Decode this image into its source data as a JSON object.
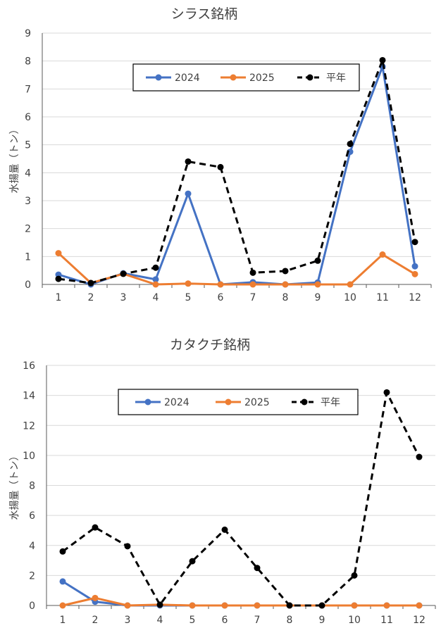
{
  "chart_data": [
    {
      "type": "line",
      "title": "シラス銘柄",
      "ylabel": "水揚量（トン）",
      "xlabel": "",
      "categories": [
        "1",
        "2",
        "3",
        "4",
        "5",
        "6",
        "7",
        "8",
        "9",
        "10",
        "11",
        "12"
      ],
      "ylim": [
        0,
        9
      ],
      "yticks": [
        0,
        1,
        2,
        3,
        4,
        5,
        6,
        7,
        8,
        9
      ],
      "grid": true,
      "legend": "top-center",
      "series": [
        {
          "name": "2024",
          "color": "#4472C4",
          "dash": false,
          "values": [
            0.35,
            0.0,
            0.4,
            0.18,
            3.25,
            0.0,
            0.08,
            0.0,
            0.07,
            4.75,
            7.8,
            0.65
          ]
        },
        {
          "name": "2025",
          "color": "#ED7D31",
          "dash": false,
          "values": [
            1.12,
            0.05,
            0.38,
            0.0,
            0.03,
            0.0,
            0.0,
            0.0,
            0.0,
            0.0,
            1.07,
            0.37
          ]
        },
        {
          "name": "平年",
          "color": "#000000",
          "dash": true,
          "values": [
            0.2,
            0.05,
            0.38,
            0.6,
            4.4,
            4.2,
            0.42,
            0.48,
            0.85,
            5.03,
            8.03,
            1.52
          ]
        }
      ]
    },
    {
      "type": "line",
      "title": "カタクチ銘柄",
      "ylabel": "水揚量（トン）",
      "xlabel": "",
      "categories": [
        "1",
        "2",
        "3",
        "4",
        "5",
        "6",
        "7",
        "8",
        "9",
        "10",
        "11",
        "12"
      ],
      "ylim": [
        0,
        16
      ],
      "yticks": [
        0,
        2,
        4,
        6,
        8,
        10,
        12,
        14,
        16
      ],
      "grid": true,
      "legend": "top-center",
      "series": [
        {
          "name": "2024",
          "color": "#4472C4",
          "dash": false,
          "values": [
            1.6,
            0.25,
            0.0,
            0.0,
            0.0,
            0.0,
            0.0,
            0.0,
            0.0,
            0.0,
            0.0,
            0.0
          ]
        },
        {
          "name": "2025",
          "color": "#ED7D31",
          "dash": false,
          "values": [
            0.0,
            0.5,
            0.0,
            0.05,
            0.0,
            0.0,
            0.0,
            0.0,
            0.0,
            0.0,
            0.0,
            0.0
          ]
        },
        {
          "name": "平年",
          "color": "#000000",
          "dash": true,
          "values": [
            3.6,
            5.2,
            3.95,
            0.05,
            2.95,
            5.05,
            2.5,
            0.0,
            0.0,
            2.0,
            14.2,
            9.9
          ]
        }
      ]
    }
  ]
}
